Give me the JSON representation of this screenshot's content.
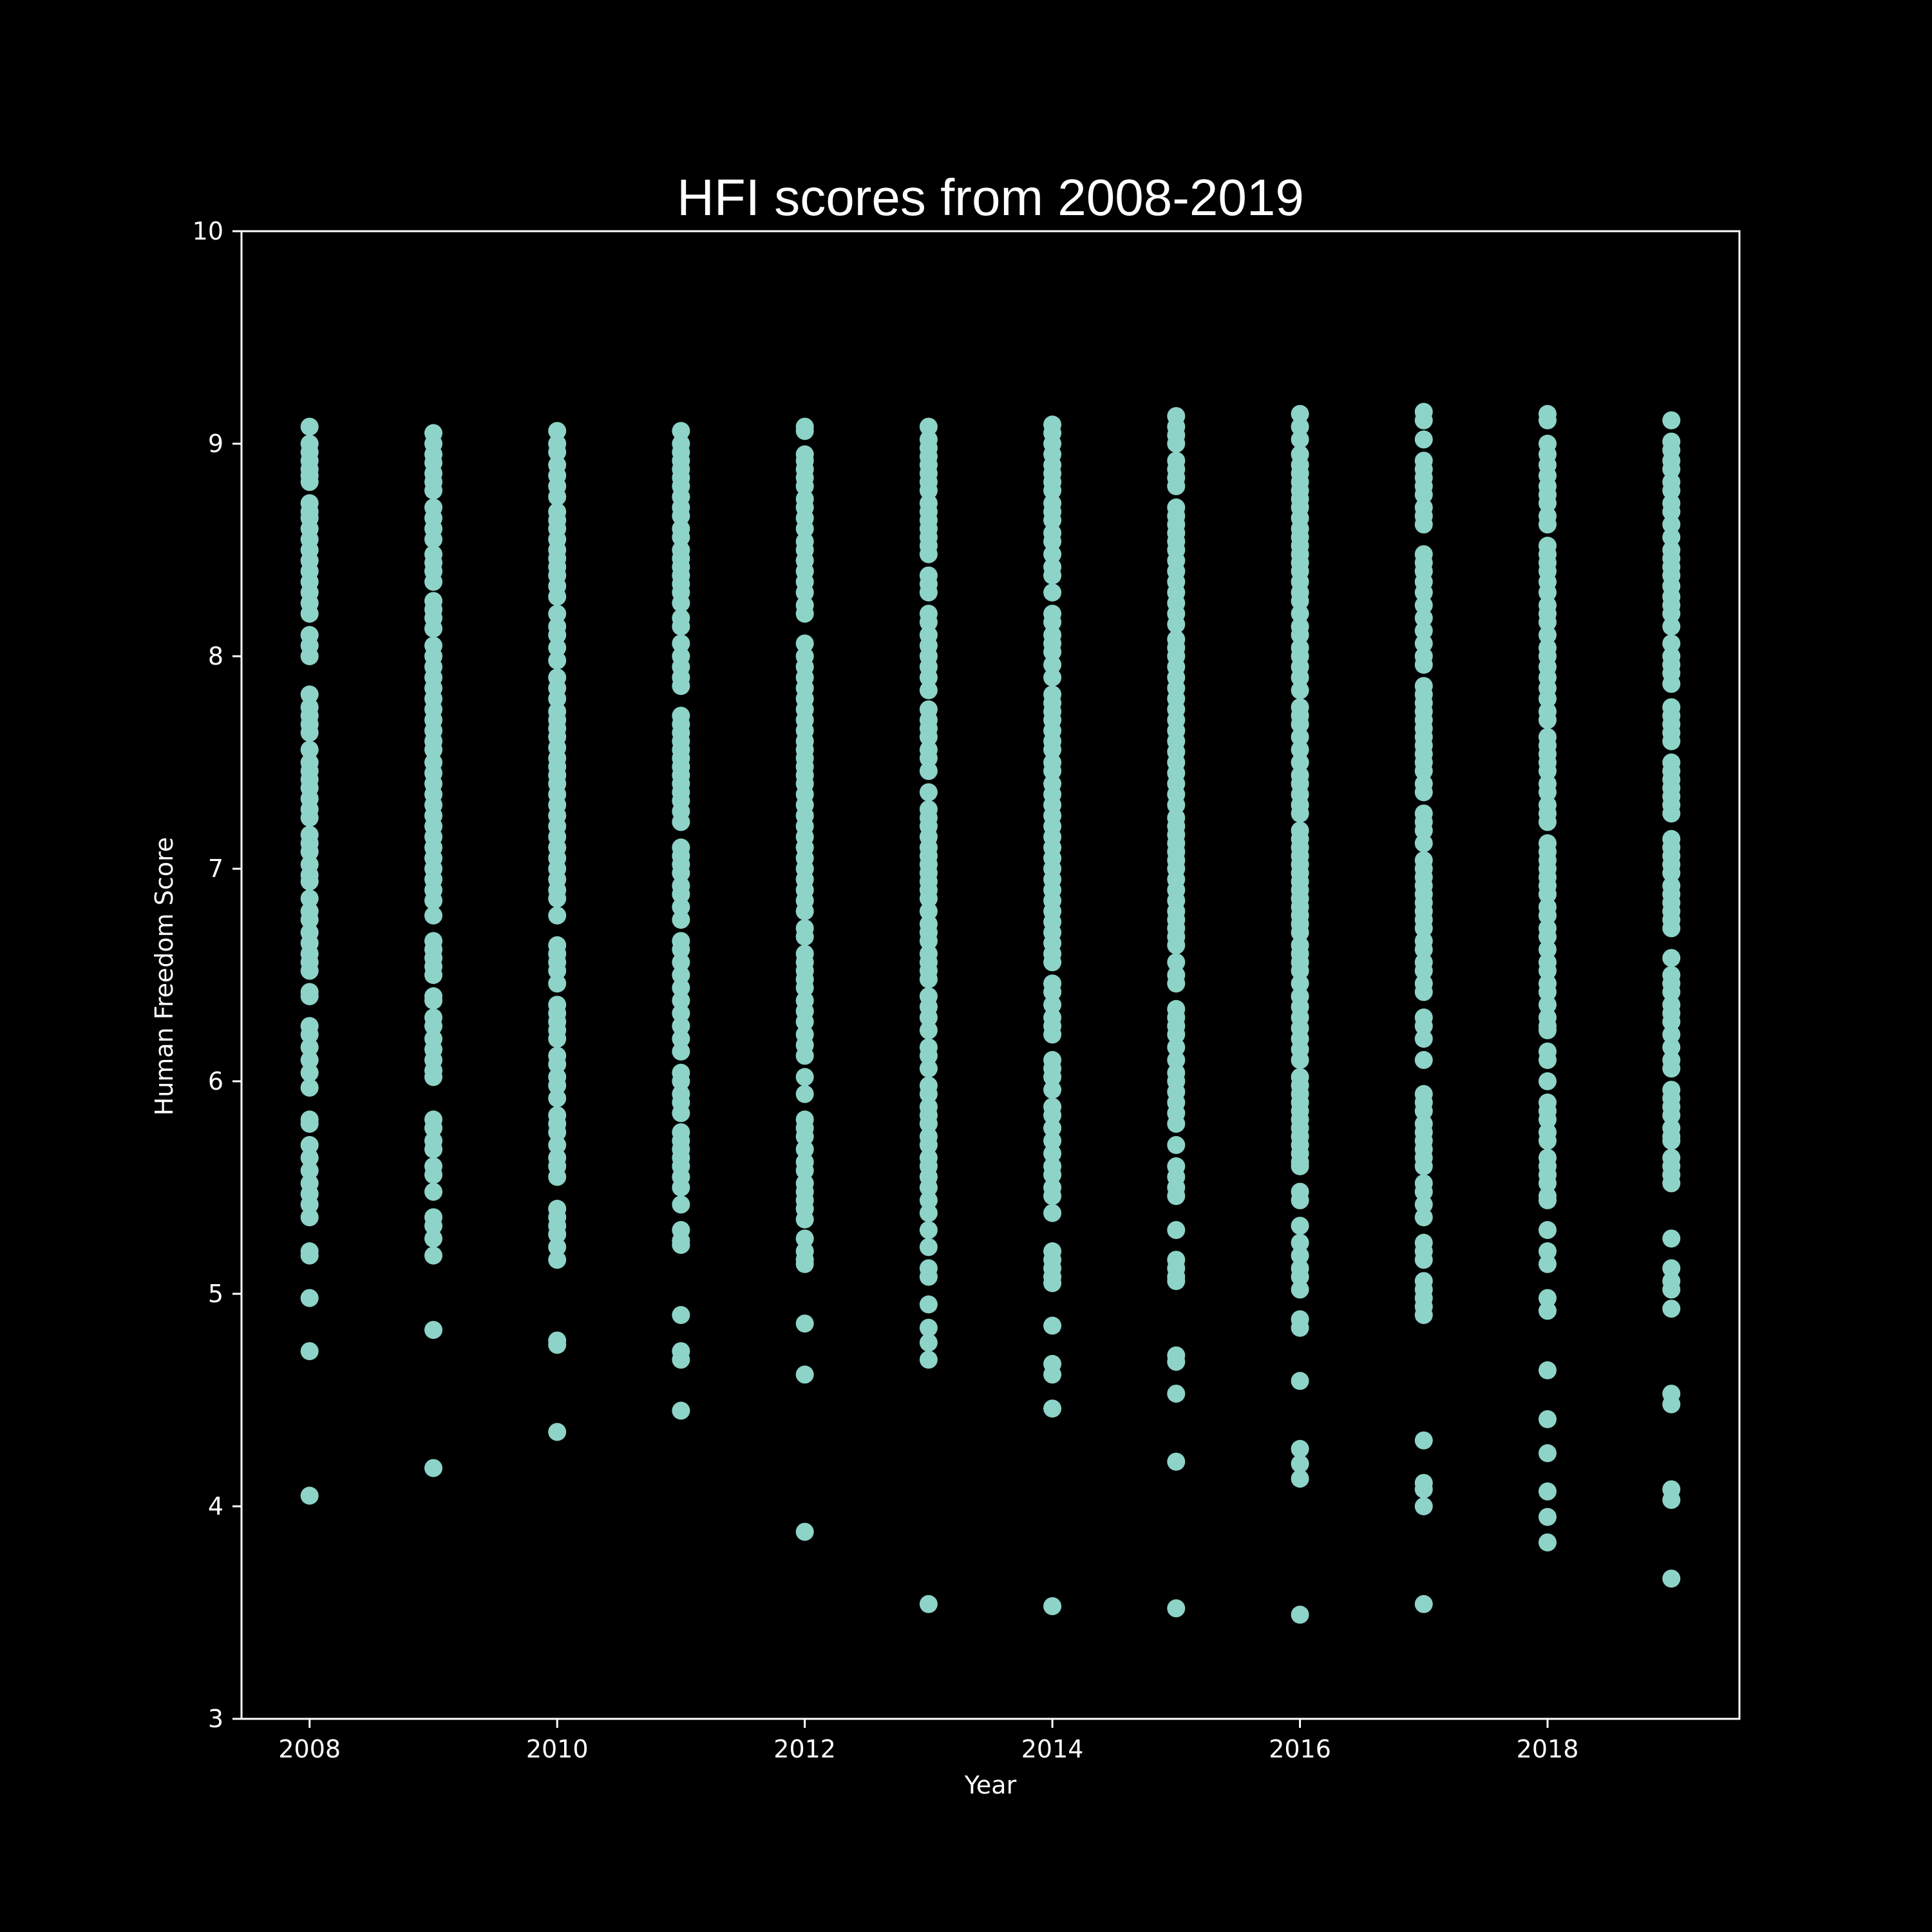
{
  "chart_data": {
    "type": "scatter",
    "title": "HFI scores from 2008-2019",
    "xlabel": "Year",
    "ylabel": "Human Freedom Score",
    "xlim": [
      2007.45,
      2019.55
    ],
    "ylim": [
      3,
      10
    ],
    "x_ticks": [
      2008,
      2010,
      2012,
      2014,
      2016,
      2018
    ],
    "y_ticks": [
      3,
      4,
      5,
      6,
      7,
      8,
      9,
      10
    ],
    "grid": false,
    "legend": "none",
    "colors": {
      "background": "#000000",
      "marker": "#8dd3c7",
      "axes": "#ffffff",
      "text": "#ffffff"
    },
    "series": [
      {
        "x": 2008,
        "values": [
          9.08,
          9.0,
          8.96,
          8.92,
          8.88,
          8.85,
          8.82,
          8.72,
          8.68,
          8.65,
          8.6,
          8.55,
          8.5,
          8.45,
          8.4,
          8.35,
          8.3,
          8.25,
          8.2,
          8.1,
          8.05,
          8.0,
          7.82,
          7.76,
          7.72,
          7.68,
          7.64,
          7.56,
          7.5,
          7.46,
          7.42,
          7.38,
          7.33,
          7.28,
          7.24,
          7.16,
          7.12,
          7.08,
          7.02,
          6.97,
          6.94,
          6.86,
          6.8,
          6.76,
          6.7,
          6.65,
          6.6,
          6.56,
          6.52,
          6.42,
          6.4,
          6.26,
          6.22,
          6.16,
          6.1,
          6.04,
          5.97,
          5.82,
          5.8,
          5.7,
          5.64,
          5.58,
          5.52,
          5.47,
          5.42,
          5.36,
          5.2,
          5.18,
          4.98,
          4.73,
          4.05
        ]
      },
      {
        "x": 2009,
        "values": [
          9.05,
          9.0,
          8.95,
          8.91,
          8.86,
          8.82,
          8.78,
          8.7,
          8.65,
          8.6,
          8.55,
          8.48,
          8.44,
          8.4,
          8.35,
          8.26,
          8.22,
          8.18,
          8.13,
          8.05,
          8.0,
          7.95,
          7.9,
          7.85,
          7.8,
          7.75,
          7.7,
          7.65,
          7.6,
          7.56,
          7.5,
          7.45,
          7.4,
          7.35,
          7.3,
          7.25,
          7.2,
          7.15,
          7.1,
          7.05,
          7.0,
          6.95,
          6.9,
          6.85,
          6.78,
          6.66,
          6.62,
          6.58,
          6.54,
          6.5,
          6.4,
          6.38,
          6.3,
          6.26,
          6.2,
          6.15,
          6.1,
          6.05,
          6.02,
          5.82,
          5.78,
          5.72,
          5.68,
          5.6,
          5.56,
          5.48,
          5.36,
          5.32,
          5.26,
          5.18,
          4.83,
          4.18
        ]
      },
      {
        "x": 2010,
        "values": [
          9.06,
          9.0,
          8.96,
          8.9,
          8.85,
          8.8,
          8.75,
          8.68,
          8.64,
          8.6,
          8.55,
          8.5,
          8.46,
          8.42,
          8.38,
          8.33,
          8.28,
          8.2,
          8.14,
          8.1,
          8.04,
          7.98,
          7.9,
          7.85,
          7.8,
          7.74,
          7.7,
          7.66,
          7.62,
          7.57,
          7.52,
          7.48,
          7.44,
          7.4,
          7.35,
          7.3,
          7.25,
          7.2,
          7.15,
          7.1,
          7.05,
          7.0,
          6.95,
          6.9,
          6.86,
          6.78,
          6.64,
          6.6,
          6.56,
          6.52,
          6.46,
          6.36,
          6.32,
          6.28,
          6.24,
          6.2,
          6.12,
          6.08,
          6.02,
          5.98,
          5.92,
          5.84,
          5.8,
          5.76,
          5.7,
          5.64,
          5.6,
          5.55,
          5.4,
          5.36,
          5.32,
          5.28,
          5.22,
          5.16,
          4.78,
          4.76,
          4.35
        ]
      },
      {
        "x": 2011,
        "values": [
          9.06,
          9.0,
          8.96,
          8.92,
          8.88,
          8.84,
          8.8,
          8.75,
          8.7,
          8.66,
          8.6,
          8.56,
          8.5,
          8.46,
          8.42,
          8.38,
          8.34,
          8.3,
          8.25,
          8.18,
          8.14,
          8.06,
          8.0,
          7.95,
          7.9,
          7.86,
          7.72,
          7.68,
          7.64,
          7.6,
          7.56,
          7.52,
          7.48,
          7.44,
          7.4,
          7.36,
          7.32,
          7.27,
          7.22,
          7.1,
          7.06,
          7.02,
          6.98,
          6.92,
          6.88,
          6.82,
          6.76,
          6.66,
          6.62,
          6.56,
          6.5,
          6.44,
          6.38,
          6.32,
          6.26,
          6.2,
          6.14,
          6.04,
          6.0,
          5.94,
          5.9,
          5.85,
          5.76,
          5.72,
          5.68,
          5.64,
          5.6,
          5.55,
          5.5,
          5.42,
          5.3,
          5.25,
          5.23,
          4.9,
          4.73,
          4.69,
          4.45
        ]
      },
      {
        "x": 2012,
        "values": [
          9.08,
          9.06,
          8.95,
          8.92,
          8.88,
          8.84,
          8.8,
          8.74,
          8.7,
          8.65,
          8.6,
          8.54,
          8.5,
          8.45,
          8.4,
          8.35,
          8.3,
          8.24,
          8.2,
          8.06,
          8.0,
          7.95,
          7.9,
          7.85,
          7.8,
          7.75,
          7.7,
          7.65,
          7.6,
          7.56,
          7.52,
          7.48,
          7.44,
          7.4,
          7.35,
          7.3,
          7.25,
          7.2,
          7.15,
          7.1,
          7.05,
          7.0,
          6.95,
          6.9,
          6.85,
          6.8,
          6.72,
          6.68,
          6.6,
          6.56,
          6.52,
          6.48,
          6.44,
          6.38,
          6.33,
          6.28,
          6.22,
          6.17,
          6.12,
          6.02,
          5.94,
          5.82,
          5.78,
          5.74,
          5.68,
          5.62,
          5.58,
          5.52,
          5.48,
          5.44,
          5.4,
          5.35,
          5.26,
          5.2,
          5.16,
          5.14,
          4.86,
          4.62,
          3.88
        ]
      },
      {
        "x": 2013,
        "values": [
          9.08,
          9.02,
          8.98,
          8.94,
          8.9,
          8.86,
          8.82,
          8.78,
          8.72,
          8.68,
          8.64,
          8.6,
          8.56,
          8.52,
          8.48,
          8.38,
          8.34,
          8.3,
          8.2,
          8.16,
          8.1,
          8.05,
          8.0,
          7.95,
          7.9,
          7.84,
          7.75,
          7.7,
          7.66,
          7.62,
          7.56,
          7.52,
          7.46,
          7.36,
          7.28,
          7.24,
          7.2,
          7.15,
          7.1,
          7.06,
          7.02,
          6.98,
          6.94,
          6.9,
          6.86,
          6.8,
          6.74,
          6.7,
          6.66,
          6.6,
          6.56,
          6.52,
          6.48,
          6.4,
          6.35,
          6.3,
          6.24,
          6.16,
          6.12,
          6.06,
          5.98,
          5.94,
          5.88,
          5.84,
          5.8,
          5.74,
          5.7,
          5.64,
          5.6,
          5.55,
          5.5,
          5.44,
          5.38,
          5.3,
          5.22,
          5.12,
          5.08,
          4.95,
          4.84,
          4.77,
          4.69,
          3.54
        ]
      },
      {
        "x": 2014,
        "values": [
          9.09,
          9.05,
          9.0,
          8.95,
          8.9,
          8.86,
          8.82,
          8.78,
          8.72,
          8.68,
          8.64,
          8.58,
          8.54,
          8.48,
          8.42,
          8.38,
          8.3,
          8.2,
          8.16,
          8.1,
          8.06,
          8.02,
          7.96,
          7.9,
          7.82,
          7.78,
          7.74,
          7.7,
          7.65,
          7.6,
          7.56,
          7.5,
          7.46,
          7.4,
          7.35,
          7.3,
          7.25,
          7.2,
          7.15,
          7.1,
          7.05,
          7.0,
          6.95,
          6.9,
          6.85,
          6.8,
          6.75,
          6.7,
          6.65,
          6.6,
          6.56,
          6.46,
          6.42,
          6.36,
          6.3,
          6.26,
          6.22,
          6.1,
          6.06,
          6.02,
          5.96,
          5.88,
          5.84,
          5.78,
          5.72,
          5.66,
          5.6,
          5.56,
          5.5,
          5.46,
          5.38,
          5.2,
          5.16,
          5.12,
          5.08,
          5.05,
          4.85,
          4.67,
          4.62,
          4.46,
          3.53
        ]
      },
      {
        "x": 2015,
        "values": [
          9.13,
          9.08,
          9.04,
          9.0,
          8.92,
          8.88,
          8.84,
          8.8,
          8.7,
          8.66,
          8.62,
          8.58,
          8.54,
          8.5,
          8.45,
          8.4,
          8.35,
          8.3,
          8.25,
          8.2,
          8.15,
          8.08,
          8.04,
          8.0,
          7.95,
          7.9,
          7.85,
          7.8,
          7.75,
          7.7,
          7.65,
          7.6,
          7.55,
          7.5,
          7.45,
          7.4,
          7.35,
          7.3,
          7.24,
          7.2,
          7.16,
          7.12,
          7.08,
          7.04,
          7.0,
          6.95,
          6.9,
          6.85,
          6.8,
          6.76,
          6.72,
          6.68,
          6.64,
          6.56,
          6.5,
          6.46,
          6.34,
          6.3,
          6.26,
          6.22,
          6.16,
          6.1,
          6.04,
          6.0,
          5.95,
          5.9,
          5.85,
          5.8,
          5.7,
          5.6,
          5.55,
          5.5,
          5.46,
          5.3,
          5.16,
          5.12,
          5.08,
          5.06,
          4.71,
          4.68,
          4.53,
          4.21,
          3.52
        ]
      },
      {
        "x": 2016,
        "values": [
          9.14,
          9.08,
          9.02,
          8.95,
          8.9,
          8.86,
          8.82,
          8.78,
          8.74,
          8.7,
          8.65,
          8.6,
          8.56,
          8.52,
          8.48,
          8.44,
          8.4,
          8.35,
          8.3,
          8.26,
          8.2,
          8.14,
          8.1,
          8.04,
          8.0,
          7.95,
          7.9,
          7.84,
          7.76,
          7.72,
          7.68,
          7.62,
          7.56,
          7.5,
          7.44,
          7.4,
          7.35,
          7.3,
          7.26,
          7.18,
          7.14,
          7.1,
          7.06,
          7.02,
          6.98,
          6.94,
          6.9,
          6.86,
          6.82,
          6.78,
          6.74,
          6.7,
          6.64,
          6.6,
          6.56,
          6.52,
          6.46,
          6.4,
          6.35,
          6.3,
          6.25,
          6.2,
          6.15,
          6.1,
          6.02,
          5.98,
          5.94,
          5.9,
          5.86,
          5.82,
          5.78,
          5.74,
          5.7,
          5.66,
          5.62,
          5.6,
          5.48,
          5.44,
          5.32,
          5.24,
          5.18,
          5.12,
          5.08,
          5.02,
          4.88,
          4.84,
          4.59,
          4.27,
          4.2,
          4.13,
          3.49
        ]
      },
      {
        "x": 2017,
        "values": [
          9.15,
          9.11,
          9.02,
          8.92,
          8.88,
          8.84,
          8.8,
          8.76,
          8.7,
          8.66,
          8.62,
          8.48,
          8.44,
          8.4,
          8.35,
          8.3,
          8.24,
          8.18,
          8.12,
          8.06,
          8.0,
          7.96,
          7.86,
          7.82,
          7.78,
          7.74,
          7.7,
          7.66,
          7.62,
          7.58,
          7.54,
          7.5,
          7.46,
          7.4,
          7.36,
          7.26,
          7.22,
          7.18,
          7.12,
          7.04,
          7.0,
          6.96,
          6.92,
          6.88,
          6.84,
          6.8,
          6.76,
          6.72,
          6.66,
          6.62,
          6.56,
          6.52,
          6.46,
          6.42,
          6.3,
          6.26,
          6.2,
          6.1,
          5.94,
          5.9,
          5.86,
          5.8,
          5.76,
          5.72,
          5.68,
          5.64,
          5.6,
          5.52,
          5.48,
          5.42,
          5.36,
          5.24,
          5.2,
          5.16,
          5.06,
          5.02,
          4.98,
          4.94,
          4.9,
          4.31,
          4.11,
          4.08,
          4.0,
          3.54
        ]
      },
      {
        "x": 2018,
        "values": [
          9.14,
          9.11,
          9.0,
          8.95,
          8.9,
          8.85,
          8.8,
          8.76,
          8.72,
          8.66,
          8.62,
          8.52,
          8.48,
          8.44,
          8.4,
          8.35,
          8.3,
          8.24,
          8.2,
          8.16,
          8.1,
          8.04,
          8.0,
          7.95,
          7.9,
          7.85,
          7.8,
          7.74,
          7.7,
          7.62,
          7.58,
          7.54,
          7.5,
          7.46,
          7.4,
          7.36,
          7.3,
          7.26,
          7.22,
          7.12,
          7.08,
          7.04,
          7.0,
          6.96,
          6.92,
          6.88,
          6.82,
          6.78,
          6.72,
          6.68,
          6.62,
          6.56,
          6.52,
          6.46,
          6.42,
          6.36,
          6.3,
          6.26,
          6.24,
          6.14,
          6.1,
          6.0,
          5.9,
          5.86,
          5.82,
          5.76,
          5.72,
          5.64,
          5.6,
          5.56,
          5.52,
          5.46,
          5.44,
          5.3,
          5.2,
          5.14,
          4.98,
          4.92,
          4.64,
          4.41,
          4.25,
          4.07,
          3.95,
          3.83
        ]
      },
      {
        "x": 2019,
        "values": [
          9.11,
          9.01,
          8.97,
          8.92,
          8.88,
          8.82,
          8.78,
          8.72,
          8.68,
          8.62,
          8.56,
          8.5,
          8.46,
          8.42,
          8.38,
          8.33,
          8.28,
          8.24,
          8.2,
          8.14,
          8.06,
          8.0,
          7.96,
          7.92,
          7.87,
          7.76,
          7.72,
          7.68,
          7.64,
          7.6,
          7.5,
          7.46,
          7.42,
          7.38,
          7.34,
          7.3,
          7.26,
          7.14,
          7.1,
          7.06,
          7.02,
          6.98,
          6.92,
          6.88,
          6.84,
          6.8,
          6.76,
          6.72,
          6.58,
          6.5,
          6.46,
          6.42,
          6.36,
          6.32,
          6.28,
          6.22,
          6.16,
          6.1,
          6.06,
          5.96,
          5.92,
          5.88,
          5.84,
          5.78,
          5.74,
          5.72,
          5.64,
          5.6,
          5.56,
          5.52,
          5.26,
          5.12,
          5.06,
          5.02,
          4.93,
          4.53,
          4.48,
          4.08,
          4.03,
          3.66
        ]
      }
    ]
  }
}
